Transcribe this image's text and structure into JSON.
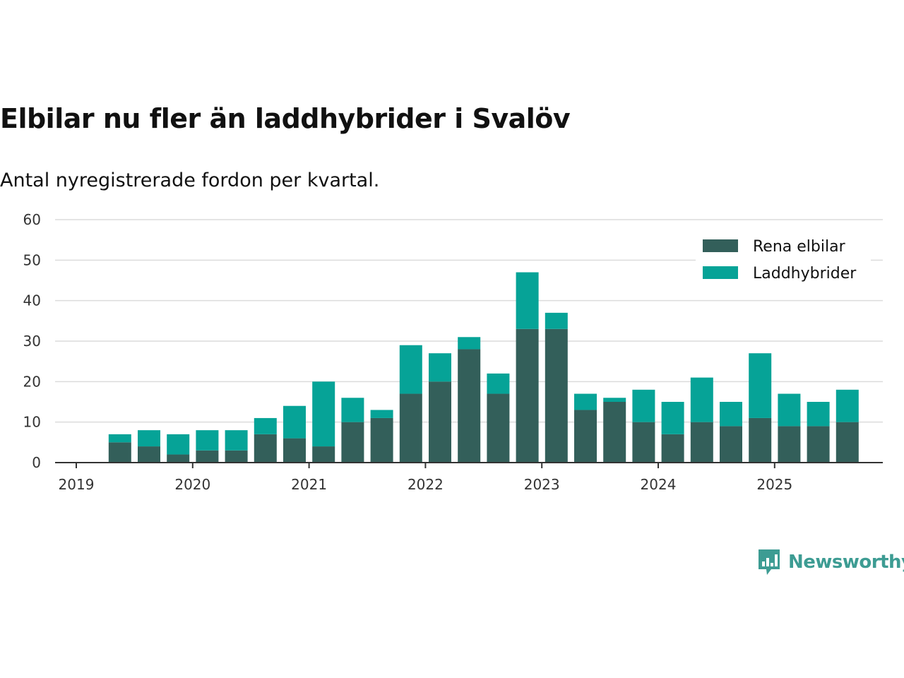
{
  "chart_data": {
    "type": "bar",
    "stacked": true,
    "title": "Elbilar nu fler än laddhybrider i Svalöv",
    "subtitle": "Antal nyregistrerade fordon per kvartal.",
    "ylim": [
      0,
      60
    ],
    "yticks": [
      0,
      10,
      20,
      30,
      40,
      50,
      60
    ],
    "xticks": [
      "2019",
      "2020",
      "2021",
      "2022",
      "2023",
      "2024",
      "2025"
    ],
    "legend_position": "top-right",
    "categories": [
      "2019-Q2",
      "2019-Q3",
      "2019-Q4",
      "2020-Q1",
      "2020-Q2",
      "2020-Q3",
      "2020-Q4",
      "2021-Q1",
      "2021-Q2",
      "2021-Q3",
      "2021-Q4",
      "2022-Q1",
      "2022-Q2",
      "2022-Q3",
      "2022-Q4",
      "2023-Q1",
      "2023-Q2",
      "2023-Q3",
      "2023-Q4",
      "2024-Q1",
      "2024-Q2",
      "2024-Q3",
      "2024-Q4",
      "2025-Q1",
      "2025-Q2",
      "2025-Q3"
    ],
    "series": [
      {
        "name": "Rena elbilar",
        "color": "#335f5a",
        "values": [
          5,
          4,
          2,
          3,
          3,
          7,
          6,
          4,
          10,
          11,
          17,
          20,
          28,
          17,
          33,
          33,
          13,
          15,
          10,
          7,
          10,
          9,
          11,
          9,
          9,
          10
        ]
      },
      {
        "name": "Laddhybrider",
        "color": "#06a397",
        "values": [
          2,
          4,
          5,
          5,
          5,
          4,
          8,
          16,
          6,
          2,
          12,
          7,
          3,
          5,
          14,
          4,
          4,
          1,
          8,
          8,
          11,
          6,
          16,
          8,
          6,
          8
        ]
      }
    ]
  },
  "brand": {
    "name": "Newsworthy",
    "color": "#3d9c93"
  }
}
